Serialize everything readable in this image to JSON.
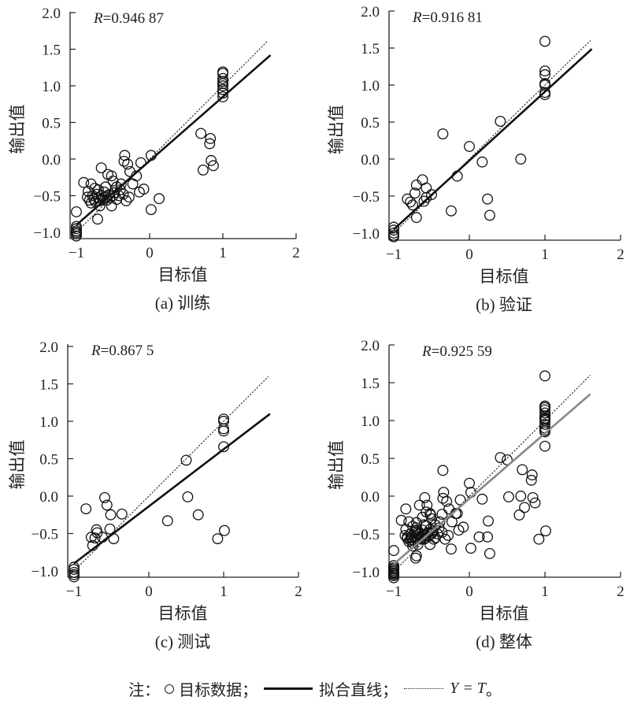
{
  "chart_data": [
    {
      "id": "a",
      "type": "scatter",
      "caption": "(a) 训练",
      "xlabel": "目标值",
      "ylabel": "输出值",
      "r_prefix": "R",
      "r_value": "=0.946 87",
      "xlim": [
        -1,
        2
      ],
      "ylim": [
        -1.08,
        2.0
      ],
      "xticks": [
        -1,
        0,
        1,
        2
      ],
      "yticks": [
        "2.0",
        "1.5",
        "1.0",
        "0.5",
        "0.0",
        "-0.5",
        "-1.0"
      ],
      "fit": {
        "slope": 0.875,
        "intercept": -0.025,
        "x_range": [
          -1,
          1.65
        ],
        "color": "#111111"
      },
      "identity_x_range": [
        -1,
        1.6
      ],
      "points": [
        [
          -1,
          -0.72
        ],
        [
          -0.9,
          -0.32
        ],
        [
          -0.8,
          -0.34
        ],
        [
          -0.66,
          -0.12
        ],
        [
          -0.34,
          0.05
        ],
        [
          -0.35,
          -0.03
        ],
        [
          -0.3,
          -0.07
        ],
        [
          -0.27,
          -0.17
        ],
        [
          -0.12,
          -0.05
        ],
        [
          0.02,
          0.05
        ],
        [
          -0.57,
          -0.21
        ],
        [
          -0.52,
          -0.23
        ],
        [
          -0.5,
          -0.3
        ],
        [
          -0.39,
          -0.34
        ],
        [
          -0.23,
          -0.34
        ],
        [
          -0.18,
          -0.23
        ],
        [
          -0.14,
          -0.45
        ],
        [
          -0.08,
          -0.41
        ],
        [
          -0.28,
          -0.52
        ],
        [
          -0.32,
          -0.57
        ],
        [
          -0.52,
          -0.64
        ],
        [
          -0.71,
          -0.82
        ],
        [
          -0.68,
          -0.64
        ],
        [
          0.02,
          -0.69
        ],
        [
          0.13,
          -0.54
        ],
        [
          0.7,
          0.35
        ],
        [
          0.83,
          0.28
        ],
        [
          0.82,
          0.21
        ],
        [
          0.73,
          -0.15
        ],
        [
          0.84,
          -0.02
        ],
        [
          0.87,
          -0.09
        ],
        [
          -0.85,
          -0.52
        ],
        [
          -0.82,
          -0.56
        ],
        [
          -0.8,
          -0.6
        ],
        [
          -0.78,
          -0.5
        ],
        [
          -0.76,
          -0.55
        ],
        [
          -0.74,
          -0.58
        ],
        [
          -0.72,
          -0.48
        ],
        [
          -0.7,
          -0.53
        ],
        [
          -0.68,
          -0.57
        ],
        [
          -0.66,
          -0.5
        ],
        [
          -0.64,
          -0.55
        ],
        [
          -0.62,
          -0.45
        ],
        [
          -0.6,
          -0.52
        ],
        [
          -0.58,
          -0.56
        ],
        [
          -0.56,
          -0.49
        ],
        [
          -0.54,
          -0.53
        ],
        [
          -0.5,
          -0.5
        ],
        [
          -0.48,
          -0.46
        ],
        [
          -0.45,
          -0.55
        ],
        [
          -0.42,
          -0.5
        ],
        [
          -0.4,
          -0.42
        ],
        [
          -0.36,
          -0.48
        ],
        [
          -0.75,
          -0.4
        ],
        [
          -0.7,
          -0.42
        ],
        [
          -0.84,
          -0.44
        ],
        [
          -0.6,
          -0.38
        ],
        [
          -0.45,
          -0.38
        ],
        [
          1,
          0.85
        ],
        [
          1,
          0.9
        ],
        [
          1,
          0.95
        ],
        [
          1,
          1.0
        ],
        [
          1,
          1.03
        ],
        [
          1,
          1.06
        ],
        [
          1,
          1.1
        ],
        [
          1,
          1.17
        ],
        [
          1,
          1.19
        ],
        [
          -1,
          -0.92
        ],
        [
          -1,
          -0.95
        ],
        [
          -1,
          -0.98
        ],
        [
          -1,
          -1.0
        ],
        [
          -1,
          -1.02
        ],
        [
          -1,
          -1.05
        ]
      ]
    },
    {
      "id": "b",
      "type": "scatter",
      "caption": "(b) 验证",
      "xlabel": "目标值",
      "ylabel": "输出值",
      "r_prefix": "R",
      "r_value": "=0.916 81",
      "xlim": [
        -1,
        2
      ],
      "ylim": [
        -1.08,
        2.0
      ],
      "xticks": [
        -1,
        0,
        1,
        2
      ],
      "yticks": [
        "2.0",
        "1.5",
        "1.0",
        "0.5",
        "0.0",
        "-0.5",
        "-1.0"
      ],
      "fit": {
        "slope": 0.93,
        "intercept": -0.02,
        "x_range": [
          -1,
          1.62
        ],
        "color": "#111111"
      },
      "identity_x_range": [
        -1,
        1.6
      ],
      "points": [
        [
          1,
          1.59
        ],
        [
          1,
          1.19
        ],
        [
          1,
          1.14
        ],
        [
          1,
          1.02
        ],
        [
          1,
          1.0
        ],
        [
          1,
          0.9
        ],
        [
          1,
          0.87
        ],
        [
          0.41,
          0.51
        ],
        [
          -0.35,
          0.34
        ],
        [
          0,
          0.17
        ],
        [
          0.17,
          -0.04
        ],
        [
          0.68,
          0
        ],
        [
          -0.16,
          -0.23
        ],
        [
          0.24,
          -0.54
        ],
        [
          0.27,
          -0.76
        ],
        [
          -0.24,
          -0.7
        ],
        [
          -0.62,
          -0.28
        ],
        [
          -0.7,
          -0.35
        ],
        [
          -0.72,
          -0.46
        ],
        [
          -0.57,
          -0.39
        ],
        [
          -0.82,
          -0.54
        ],
        [
          -0.78,
          -0.58
        ],
        [
          -0.75,
          -0.62
        ],
        [
          -0.6,
          -0.57
        ],
        [
          -0.57,
          -0.52
        ],
        [
          -0.5,
          -0.48
        ],
        [
          -0.7,
          -0.79
        ],
        [
          -1,
          -0.92
        ],
        [
          -1,
          -0.96
        ],
        [
          -1,
          -1.0
        ],
        [
          -1,
          -1.03
        ],
        [
          -1,
          -1.05
        ]
      ]
    },
    {
      "id": "c",
      "type": "scatter",
      "caption": "(c) 测试",
      "xlabel": "目标值",
      "ylabel": "输出值",
      "r_prefix": "R",
      "r_value": "=0.867 5",
      "xlim": [
        -1,
        2
      ],
      "ylim": [
        -1.08,
        2.0
      ],
      "xticks": [
        -1,
        0,
        1,
        2
      ],
      "yticks": [
        "2.0",
        "1.5",
        "1.0",
        "0.5",
        "0.0",
        "-0.5",
        "-1.0"
      ],
      "fit": {
        "slope": 0.763,
        "intercept": -0.137,
        "x_range": [
          -1,
          1.62
        ],
        "color": "#111111"
      },
      "identity_x_range": [
        -1,
        1.6
      ],
      "points": [
        [
          1,
          1.03
        ],
        [
          1,
          1.0
        ],
        [
          1,
          0.9
        ],
        [
          1,
          0.87
        ],
        [
          1,
          0.66
        ],
        [
          0.5,
          0.48
        ],
        [
          0.52,
          -0.01
        ],
        [
          0.66,
          -0.25
        ],
        [
          0.25,
          -0.33
        ],
        [
          0.92,
          -0.57
        ],
        [
          1.01,
          -0.46
        ],
        [
          -0.84,
          -0.17
        ],
        [
          -0.59,
          -0.02
        ],
        [
          -0.56,
          -0.12
        ],
        [
          -0.51,
          -0.25
        ],
        [
          -0.36,
          -0.24
        ],
        [
          -0.52,
          -0.44
        ],
        [
          -0.47,
          -0.57
        ],
        [
          -0.62,
          -0.55
        ],
        [
          -0.7,
          -0.45
        ],
        [
          -0.69,
          -0.49
        ],
        [
          -0.77,
          -0.55
        ],
        [
          -0.75,
          -0.66
        ],
        [
          -0.72,
          -0.56
        ],
        [
          -1,
          -0.95
        ],
        [
          -1,
          -0.98
        ],
        [
          -1,
          -1.02
        ],
        [
          -1,
          -1.05
        ],
        [
          -1,
          -1.08
        ]
      ]
    },
    {
      "id": "d",
      "type": "scatter",
      "caption": "(d) 整体",
      "xlabel": "目标值",
      "ylabel": "输出值",
      "r_prefix": "R",
      "r_value": "=0.925 59",
      "xlim": [
        -1,
        2
      ],
      "ylim": [
        -1.08,
        2.0
      ],
      "xticks": [
        -1,
        0,
        1,
        2
      ],
      "yticks": [
        "2.0",
        "1.5",
        "1.0",
        "0.5",
        "0.0",
        "-0.5",
        "-1.0"
      ],
      "fit": {
        "slope": 0.865,
        "intercept": -0.035,
        "x_range": [
          -1,
          1.6
        ],
        "color": "#888888"
      },
      "identity_x_range": [
        -1,
        1.6
      ],
      "points_union_of": [
        "a",
        "b",
        "c"
      ]
    }
  ],
  "legend": {
    "prefix": "注：",
    "target_label": "目标数据；",
    "fit_label": "拟合直线；",
    "identity_label": "Y = T",
    "suffix": "。"
  }
}
